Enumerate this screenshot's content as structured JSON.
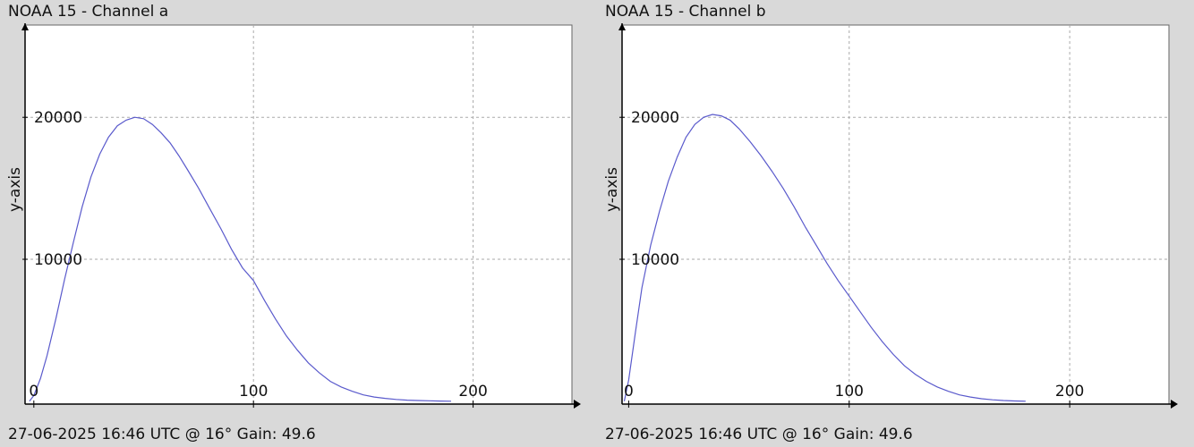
{
  "colors": {
    "background": "#d9d9d9",
    "plot_bg": "#ffffff",
    "series": "#5a5acc",
    "grid": "#aaaaaa",
    "axis": "#000000"
  },
  "chart_data": [
    {
      "type": "line",
      "title": "NOAA 15 - Channel a",
      "footer": "27-06-2025 16:46 UTC @ 16° Gain: 49.6",
      "xlabel": "",
      "ylabel": "y-axis",
      "xlim": [
        -4,
        245
      ],
      "ylim": [
        -200,
        26500
      ],
      "x_ticks": [
        0,
        100,
        200
      ],
      "y_ticks": [
        10000,
        20000
      ],
      "grid": true,
      "legend": "none",
      "series": [
        {
          "x": [
            -2,
            0,
            3,
            6,
            10,
            14,
            18,
            22,
            26,
            30,
            34,
            38,
            42,
            46,
            50,
            54,
            58,
            62,
            66,
            70,
            75,
            80,
            85,
            90,
            95,
            100,
            105,
            110,
            115,
            120,
            125,
            130,
            135,
            140,
            145,
            150,
            155,
            160,
            165,
            170,
            175,
            180,
            185,
            190
          ],
          "y": [
            0,
            400,
            1600,
            3200,
            5800,
            8600,
            11200,
            13700,
            15800,
            17400,
            18600,
            19400,
            19800,
            20000,
            19900,
            19500,
            18900,
            18200,
            17300,
            16300,
            15000,
            13600,
            12200,
            10700,
            9400,
            8500,
            7100,
            5800,
            4600,
            3600,
            2700,
            2000,
            1400,
            1000,
            700,
            450,
            300,
            200,
            130,
            80,
            50,
            30,
            15,
            0
          ]
        }
      ]
    },
    {
      "type": "line",
      "title": "NOAA 15 - Channel b",
      "footer": "27-06-2025 16:46 UTC @ 16° Gain: 49.6",
      "xlabel": "",
      "ylabel": "y-axis",
      "xlim": [
        -3,
        245
      ],
      "ylim": [
        -200,
        26500
      ],
      "x_ticks": [
        0,
        100,
        200
      ],
      "y_ticks": [
        10000,
        20000
      ],
      "grid": true,
      "legend": "none",
      "series": [
        {
          "x": [
            -2,
            0,
            3,
            6,
            10,
            14,
            18,
            22,
            26,
            30,
            34,
            38,
            42,
            46,
            50,
            55,
            60,
            65,
            70,
            75,
            80,
            85,
            90,
            95,
            100,
            105,
            110,
            115,
            120,
            125,
            130,
            135,
            140,
            145,
            150,
            155,
            160,
            165,
            170,
            175,
            180
          ],
          "y": [
            0,
            1500,
            4800,
            8000,
            11000,
            13400,
            15500,
            17200,
            18600,
            19500,
            20000,
            20200,
            20100,
            19800,
            19200,
            18300,
            17300,
            16200,
            15000,
            13700,
            12300,
            11000,
            9700,
            8500,
            7400,
            6300,
            5200,
            4200,
            3300,
            2500,
            1900,
            1400,
            1000,
            700,
            450,
            300,
            180,
            100,
            50,
            20,
            0
          ]
        }
      ]
    }
  ]
}
